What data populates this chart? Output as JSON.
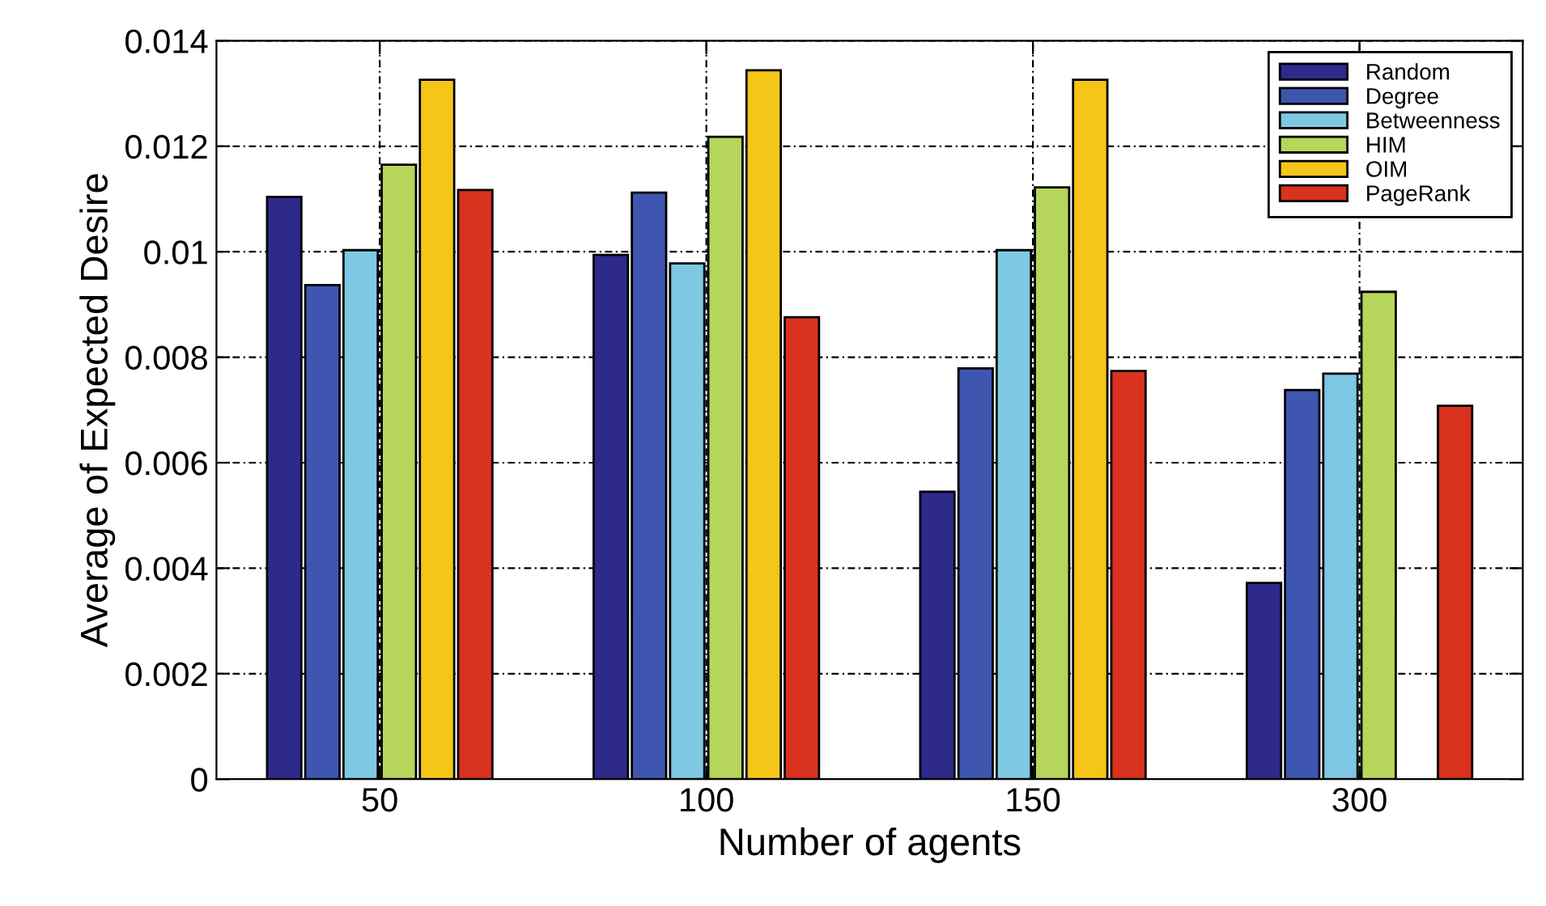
{
  "chart_data": {
    "type": "bar",
    "xlabel": "Number of agents",
    "ylabel": "Average of Expected Desire",
    "categories": [
      "50",
      "100",
      "150",
      "300"
    ],
    "series": [
      {
        "name": "Random",
        "color": "#2e2a8c",
        "values": [
          0.01104,
          0.00994,
          0.00545,
          0.00372
        ]
      },
      {
        "name": "Degree",
        "color": "#3f56b0",
        "values": [
          0.00937,
          0.01112,
          0.00779,
          0.00738
        ]
      },
      {
        "name": "Betweenness",
        "color": "#7ec8e3",
        "values": [
          0.01003,
          0.00978,
          0.01003,
          0.00769
        ]
      },
      {
        "name": "HIM",
        "color": "#b5d65a",
        "values": [
          0.01165,
          0.01218,
          0.01122,
          0.00924
        ]
      },
      {
        "name": "OIM",
        "color": "#f5c518",
        "values": [
          0.01326,
          0.01344,
          0.01326,
          null
        ]
      },
      {
        "name": "PageRank",
        "color": "#d9321e",
        "values": [
          0.01117,
          0.00876,
          0.00774,
          0.00708
        ]
      }
    ],
    "ylim": [
      0,
      0.014
    ],
    "yticks": [
      0,
      0.002,
      0.004,
      0.006,
      0.008,
      0.01,
      0.012,
      0.014
    ],
    "grid": true,
    "legend": "top right"
  }
}
